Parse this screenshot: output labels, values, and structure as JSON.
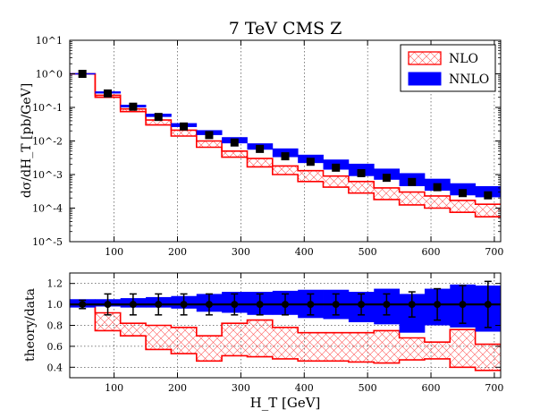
{
  "chart_data": [
    {
      "type": "step-band",
      "title": "7 TeV CMS Z",
      "ylabel": "dσ/dH_T [pb/GeV]",
      "xlabel": "",
      "yscale": "log",
      "ylim": [
        1e-05,
        10
      ],
      "xlim": [
        30,
        710
      ],
      "ytick_labels": [
        "10^-5",
        "10^-4",
        "10^-3",
        "10^-2",
        "10^-1",
        "10^0",
        "10^1"
      ],
      "xtick_labels": [
        "100",
        "200",
        "300",
        "400",
        "500",
        "600",
        "700"
      ],
      "bin_edges": [
        30,
        70,
        110,
        150,
        190,
        230,
        270,
        310,
        350,
        390,
        430,
        470,
        510,
        550,
        590,
        630,
        670,
        710
      ],
      "legend": {
        "position": "top-right",
        "entries": [
          "NLO",
          "NNLO"
        ]
      },
      "series": [
        {
          "name": "NLO",
          "style": "hatched",
          "color": "#ff0000",
          "low": [
            1.0,
            0.2,
            0.075,
            0.03,
            0.014,
            0.0065,
            0.0033,
            0.0017,
            0.001,
            0.00062,
            0.00042,
            0.00028,
            0.00018,
            0.000125,
            0.0001,
            7.5e-05,
            5.5e-05
          ],
          "high": [
            1.0,
            0.23,
            0.09,
            0.042,
            0.021,
            0.01,
            0.005,
            0.003,
            0.0018,
            0.0013,
            0.0009,
            0.00062,
            0.0004,
            0.0003,
            0.00023,
            0.00017,
            0.00013
          ]
        },
        {
          "name": "NNLO",
          "style": "filled",
          "color": "#0000ff",
          "low": [
            1.0,
            0.26,
            0.1,
            0.052,
            0.026,
            0.015,
            0.0085,
            0.0055,
            0.0033,
            0.0022,
            0.0014,
            0.0009,
            0.0007,
            0.00045,
            0.00033,
            0.00024,
            0.00021
          ],
          "high": [
            1.05,
            0.3,
            0.12,
            0.065,
            0.034,
            0.021,
            0.013,
            0.0085,
            0.006,
            0.0039,
            0.0028,
            0.0021,
            0.0015,
            0.0011,
            0.00075,
            0.00055,
            0.00045
          ]
        },
        {
          "name": "data",
          "style": "points",
          "color": "#000000",
          "x": [
            50,
            90,
            130,
            170,
            210,
            250,
            290,
            330,
            370,
            410,
            450,
            490,
            530,
            570,
            610,
            650,
            690
          ],
          "y": [
            1.0,
            0.26,
            0.105,
            0.052,
            0.027,
            0.015,
            0.009,
            0.0058,
            0.0035,
            0.0024,
            0.0016,
            0.0011,
            0.0008,
            0.0006,
            0.00042,
            0.00028,
            0.00024
          ]
        }
      ]
    },
    {
      "type": "step-band",
      "title": "",
      "ylabel": "theory/data",
      "xlabel": "H_T [GeV]",
      "ylim": [
        0.3,
        1.3
      ],
      "xlim": [
        30,
        710
      ],
      "ytick_labels": [
        "0.4",
        "0.6",
        "0.8",
        "1.0",
        "1.2"
      ],
      "xtick_labels": [
        "100",
        "200",
        "300",
        "400",
        "500",
        "600",
        "700"
      ],
      "bin_edges": [
        30,
        70,
        110,
        150,
        190,
        230,
        270,
        310,
        350,
        390,
        430,
        470,
        510,
        550,
        590,
        630,
        670,
        710
      ],
      "series": [
        {
          "name": "NLO",
          "style": "hatched",
          "color": "#ff0000",
          "low": [
            1.0,
            0.75,
            0.7,
            0.57,
            0.53,
            0.46,
            0.51,
            0.5,
            0.48,
            0.46,
            0.46,
            0.45,
            0.44,
            0.47,
            0.48,
            0.4,
            0.37
          ],
          "high": [
            1.02,
            0.92,
            0.82,
            0.8,
            0.78,
            0.7,
            0.82,
            0.85,
            0.78,
            0.73,
            0.73,
            0.73,
            0.75,
            0.68,
            0.64,
            0.76,
            0.62
          ]
        },
        {
          "name": "NNLO",
          "style": "filled",
          "color": "#0000ff",
          "low": [
            0.97,
            0.98,
            0.97,
            0.97,
            0.96,
            0.93,
            0.92,
            0.9,
            0.9,
            0.87,
            0.86,
            0.83,
            0.81,
            0.73,
            0.8,
            0.78,
            0.74
          ],
          "high": [
            1.05,
            1.05,
            1.06,
            1.07,
            1.08,
            1.1,
            1.12,
            1.12,
            1.13,
            1.14,
            1.14,
            1.12,
            1.15,
            1.1,
            1.15,
            1.19,
            1.18
          ]
        },
        {
          "name": "data",
          "style": "points",
          "color": "#000000",
          "x": [
            50,
            90,
            130,
            170,
            210,
            250,
            290,
            330,
            370,
            410,
            450,
            490,
            530,
            570,
            610,
            650,
            690
          ],
          "y": [
            1.0,
            1.0,
            1.0,
            1.0,
            1.0,
            1.0,
            1.0,
            1.0,
            1.0,
            1.0,
            1.0,
            1.0,
            1.0,
            1.0,
            1.0,
            1.0,
            1.0
          ],
          "err": [
            0.04,
            0.1,
            0.1,
            0.1,
            0.1,
            0.1,
            0.1,
            0.1,
            0.1,
            0.1,
            0.1,
            0.1,
            0.1,
            0.12,
            0.15,
            0.18,
            0.22
          ]
        }
      ]
    }
  ]
}
